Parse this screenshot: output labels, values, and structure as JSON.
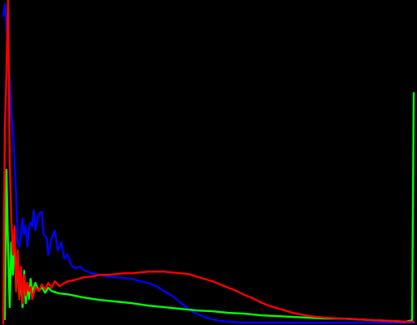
{
  "chart_data": {
    "type": "line",
    "title": "",
    "xlabel": "",
    "ylabel": "",
    "xlim": [
      0,
      255
    ],
    "ylim": [
      0,
      400
    ],
    "grid": false,
    "legend": "none",
    "background": "#000000",
    "series": [
      {
        "color": "#0000ff",
        "points": [
          [
            0,
            380
          ],
          [
            1,
            395
          ],
          [
            2,
            370
          ],
          [
            3,
            330
          ],
          [
            4,
            300
          ],
          [
            5,
            260
          ],
          [
            6,
            240
          ],
          [
            8,
            160
          ],
          [
            9,
            100
          ],
          [
            10,
            95
          ],
          [
            11,
            110
          ],
          [
            12,
            130
          ],
          [
            13,
            110
          ],
          [
            14,
            120
          ],
          [
            15,
            95
          ],
          [
            16,
            118
          ],
          [
            17,
            125
          ],
          [
            18,
            120
          ],
          [
            19,
            140
          ],
          [
            20,
            115
          ],
          [
            22,
            135
          ],
          [
            24,
            138
          ],
          [
            25,
            110
          ],
          [
            27,
            105
          ],
          [
            28,
            85
          ],
          [
            30,
            105
          ],
          [
            32,
            115
          ],
          [
            34,
            90
          ],
          [
            36,
            100
          ],
          [
            38,
            80
          ],
          [
            40,
            85
          ],
          [
            42,
            72
          ],
          [
            45,
            68
          ],
          [
            48,
            70
          ],
          [
            50,
            66
          ],
          [
            55,
            62
          ],
          [
            60,
            60
          ],
          [
            65,
            58
          ],
          [
            70,
            57
          ],
          [
            75,
            56
          ],
          [
            80,
            55
          ],
          [
            85,
            52
          ],
          [
            90,
            50
          ],
          [
            95,
            46
          ],
          [
            100,
            40
          ],
          [
            105,
            34
          ],
          [
            110,
            26
          ],
          [
            115,
            18
          ],
          [
            120,
            12
          ],
          [
            125,
            8
          ],
          [
            130,
            5
          ],
          [
            135,
            3
          ],
          [
            140,
            2
          ],
          [
            150,
            1
          ],
          [
            170,
            1
          ],
          [
            200,
            1
          ],
          [
            230,
            1
          ],
          [
            255,
            1
          ]
        ]
      },
      {
        "color": "#00ff00",
        "points": [
          [
            0,
            20
          ],
          [
            1,
            5
          ],
          [
            2,
            190
          ],
          [
            3,
            90
          ],
          [
            4,
            20
          ],
          [
            5,
            100
          ],
          [
            6,
            60
          ],
          [
            7,
            110
          ],
          [
            8,
            40
          ],
          [
            9,
            80
          ],
          [
            10,
            30
          ],
          [
            11,
            60
          ],
          [
            12,
            20
          ],
          [
            13,
            65
          ],
          [
            14,
            25
          ],
          [
            15,
            50
          ],
          [
            16,
            30
          ],
          [
            17,
            55
          ],
          [
            18,
            35
          ],
          [
            19,
            45
          ],
          [
            20,
            50
          ],
          [
            22,
            40
          ],
          [
            24,
            45
          ],
          [
            26,
            38
          ],
          [
            28,
            44
          ],
          [
            30,
            40
          ],
          [
            35,
            37
          ],
          [
            40,
            36
          ],
          [
            45,
            34
          ],
          [
            50,
            32
          ],
          [
            60,
            29
          ],
          [
            70,
            27
          ],
          [
            80,
            25
          ],
          [
            90,
            22
          ],
          [
            100,
            20
          ],
          [
            110,
            18
          ],
          [
            120,
            16
          ],
          [
            130,
            15
          ],
          [
            140,
            13
          ],
          [
            150,
            12
          ],
          [
            160,
            10
          ],
          [
            170,
            9
          ],
          [
            180,
            8
          ],
          [
            190,
            7
          ],
          [
            200,
            6
          ],
          [
            210,
            6
          ],
          [
            220,
            5
          ],
          [
            230,
            4
          ],
          [
            240,
            3
          ],
          [
            250,
            2
          ],
          [
            254,
            4
          ],
          [
            255,
            285
          ]
        ]
      },
      {
        "color": "#ff0000",
        "points": [
          [
            0,
            0
          ],
          [
            1,
            240
          ],
          [
            2,
            310
          ],
          [
            3,
            400
          ],
          [
            4,
            200
          ],
          [
            5,
            130
          ],
          [
            6,
            85
          ],
          [
            7,
            120
          ],
          [
            8,
            40
          ],
          [
            9,
            90
          ],
          [
            10,
            30
          ],
          [
            11,
            70
          ],
          [
            12,
            25
          ],
          [
            13,
            60
          ],
          [
            14,
            35
          ],
          [
            15,
            50
          ],
          [
            16,
            40
          ],
          [
            17,
            45
          ],
          [
            18,
            30
          ],
          [
            20,
            45
          ],
          [
            22,
            40
          ],
          [
            24,
            48
          ],
          [
            26,
            42
          ],
          [
            28,
            50
          ],
          [
            30,
            44
          ],
          [
            32,
            52
          ],
          [
            35,
            46
          ],
          [
            38,
            50
          ],
          [
            40,
            52
          ],
          [
            45,
            54
          ],
          [
            50,
            57
          ],
          [
            55,
            58
          ],
          [
            60,
            60
          ],
          [
            65,
            60
          ],
          [
            70,
            61
          ],
          [
            75,
            62
          ],
          [
            80,
            62
          ],
          [
            85,
            63
          ],
          [
            90,
            64
          ],
          [
            95,
            64
          ],
          [
            100,
            64
          ],
          [
            105,
            63
          ],
          [
            110,
            62
          ],
          [
            115,
            61
          ],
          [
            120,
            58
          ],
          [
            125,
            55
          ],
          [
            130,
            52
          ],
          [
            135,
            48
          ],
          [
            140,
            44
          ],
          [
            145,
            40
          ],
          [
            150,
            35
          ],
          [
            155,
            31
          ],
          [
            160,
            26
          ],
          [
            165,
            22
          ],
          [
            170,
            19
          ],
          [
            175,
            16
          ],
          [
            180,
            13
          ],
          [
            185,
            11
          ],
          [
            190,
            9
          ],
          [
            195,
            8
          ],
          [
            200,
            7
          ],
          [
            210,
            6
          ],
          [
            220,
            5
          ],
          [
            230,
            4
          ],
          [
            240,
            3
          ],
          [
            250,
            2
          ],
          [
            255,
            2
          ]
        ]
      }
    ]
  }
}
